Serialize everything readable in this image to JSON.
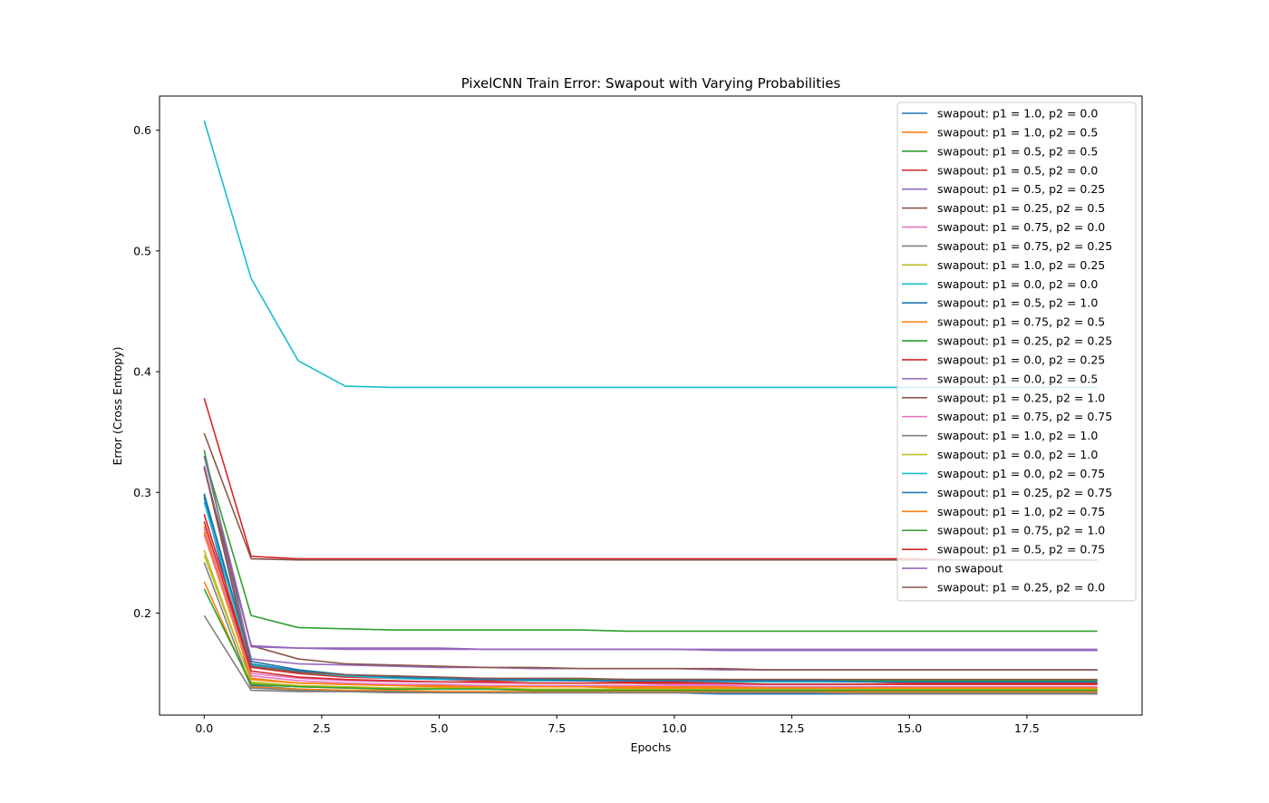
{
  "chart_data": {
    "type": "line",
    "title": "PixelCNN Train Error: Swapout with Varying Probabilities",
    "xlabel": "Epochs",
    "ylabel": "Error (Cross Entropy)",
    "xlim": [
      -0.95,
      19.95
    ],
    "ylim": [
      0.1155,
      0.6283
    ],
    "xticks": [
      0.0,
      2.5,
      5.0,
      7.5,
      10.0,
      12.5,
      15.0,
      17.5
    ],
    "xtick_labels": [
      "0.0",
      "2.5",
      "5.0",
      "7.5",
      "10.0",
      "12.5",
      "15.0",
      "17.5"
    ],
    "yticks": [
      0.2,
      0.3,
      0.4,
      0.5,
      0.6
    ],
    "ytick_labels": [
      "0.2",
      "0.3",
      "0.4",
      "0.5",
      "0.6"
    ],
    "grid": false,
    "legend": "top-right",
    "x": [
      0,
      1,
      2,
      3,
      4,
      5,
      6,
      7,
      8,
      9,
      10,
      11,
      12,
      13,
      14,
      15,
      16,
      17,
      18,
      19
    ],
    "series": [
      {
        "name": "swapout: p1 = 1.0, p2 = 0.0",
        "color": "#1f77b4",
        "values": [
          0.296,
          0.14,
          0.137,
          0.136,
          0.135,
          0.135,
          0.134,
          0.134,
          0.134,
          0.134,
          0.134,
          0.133,
          0.133,
          0.133,
          0.133,
          0.133,
          0.133,
          0.133,
          0.133,
          0.133
        ]
      },
      {
        "name": "swapout: p1 = 1.0, p2 = 0.5",
        "color": "#ff7f0e",
        "values": [
          0.272,
          0.145,
          0.142,
          0.141,
          0.14,
          0.14,
          0.139,
          0.139,
          0.139,
          0.139,
          0.139,
          0.139,
          0.138,
          0.138,
          0.138,
          0.138,
          0.138,
          0.138,
          0.138,
          0.138
        ]
      },
      {
        "name": "swapout: p1 = 0.5, p2 = 0.5",
        "color": "#2ca02c",
        "values": [
          0.33,
          0.198,
          0.188,
          0.187,
          0.186,
          0.186,
          0.186,
          0.186,
          0.186,
          0.185,
          0.185,
          0.185,
          0.185,
          0.185,
          0.185,
          0.185,
          0.185,
          0.185,
          0.185,
          0.185
        ]
      },
      {
        "name": "swapout: p1 = 0.5, p2 = 0.0",
        "color": "#d62728",
        "values": [
          0.378,
          0.247,
          0.245,
          0.245,
          0.245,
          0.245,
          0.245,
          0.245,
          0.245,
          0.245,
          0.245,
          0.245,
          0.245,
          0.245,
          0.245,
          0.245,
          0.244,
          0.244,
          0.244,
          0.244
        ]
      },
      {
        "name": "swapout: p1 = 0.5, p2 = 0.25",
        "color": "#9467bd",
        "values": [
          0.33,
          0.173,
          0.171,
          0.171,
          0.171,
          0.171,
          0.17,
          0.17,
          0.17,
          0.17,
          0.17,
          0.17,
          0.17,
          0.17,
          0.17,
          0.17,
          0.17,
          0.17,
          0.17,
          0.17
        ]
      },
      {
        "name": "swapout: p1 = 0.25, p2 = 0.5",
        "color": "#8c564b",
        "values": [
          0.349,
          0.245,
          0.244,
          0.244,
          0.244,
          0.244,
          0.244,
          0.244,
          0.244,
          0.244,
          0.244,
          0.244,
          0.244,
          0.244,
          0.244,
          0.244,
          0.244,
          0.244,
          0.244,
          0.244
        ]
      },
      {
        "name": "swapout: p1 = 0.75, p2 = 0.0",
        "color": "#e377c2",
        "values": [
          0.27,
          0.15,
          0.146,
          0.144,
          0.143,
          0.143,
          0.142,
          0.142,
          0.142,
          0.142,
          0.141,
          0.141,
          0.141,
          0.141,
          0.141,
          0.141,
          0.141,
          0.141,
          0.141,
          0.141
        ]
      },
      {
        "name": "swapout: p1 = 0.75, p2 = 0.25",
        "color": "#7f7f7f",
        "values": [
          0.198,
          0.136,
          0.135,
          0.135,
          0.134,
          0.134,
          0.134,
          0.134,
          0.134,
          0.134,
          0.134,
          0.134,
          0.134,
          0.134,
          0.134,
          0.134,
          0.134,
          0.134,
          0.134,
          0.134
        ]
      },
      {
        "name": "swapout: p1 = 1.0, p2 = 0.25",
        "color": "#bcbd22",
        "values": [
          0.252,
          0.142,
          0.139,
          0.138,
          0.137,
          0.137,
          0.137,
          0.136,
          0.136,
          0.136,
          0.136,
          0.136,
          0.136,
          0.136,
          0.136,
          0.136,
          0.136,
          0.136,
          0.136,
          0.136
        ]
      },
      {
        "name": "swapout: p1 = 0.0, p2 = 0.0",
        "color": "#17becf",
        "values": [
          0.608,
          0.477,
          0.409,
          0.388,
          0.387,
          0.387,
          0.387,
          0.387,
          0.387,
          0.387,
          0.387,
          0.387,
          0.387,
          0.387,
          0.387,
          0.387,
          0.387,
          0.387,
          0.387,
          0.387
        ]
      },
      {
        "name": "swapout: p1 = 0.5, p2 = 1.0",
        "color": "#1f77b4",
        "values": [
          0.298,
          0.158,
          0.152,
          0.148,
          0.147,
          0.146,
          0.146,
          0.145,
          0.145,
          0.145,
          0.145,
          0.145,
          0.144,
          0.144,
          0.144,
          0.144,
          0.144,
          0.144,
          0.144,
          0.144
        ]
      },
      {
        "name": "swapout: p1 = 0.75, p2 = 0.5",
        "color": "#ff7f0e",
        "values": [
          0.226,
          0.139,
          0.137,
          0.136,
          0.136,
          0.135,
          0.135,
          0.135,
          0.135,
          0.135,
          0.135,
          0.135,
          0.135,
          0.135,
          0.135,
          0.135,
          0.135,
          0.135,
          0.135,
          0.135
        ]
      },
      {
        "name": "swapout: p1 = 0.25, p2 = 0.25",
        "color": "#2ca02c",
        "values": [
          0.335,
          0.16,
          0.153,
          0.149,
          0.147,
          0.146,
          0.146,
          0.145,
          0.145,
          0.145,
          0.144,
          0.144,
          0.144,
          0.144,
          0.144,
          0.144,
          0.144,
          0.144,
          0.144,
          0.144
        ]
      },
      {
        "name": "swapout: p1 = 0.0, p2 = 0.25",
        "color": "#d62728",
        "values": [
          0.282,
          0.155,
          0.15,
          0.147,
          0.146,
          0.145,
          0.144,
          0.144,
          0.144,
          0.143,
          0.143,
          0.143,
          0.143,
          0.143,
          0.143,
          0.142,
          0.142,
          0.142,
          0.142,
          0.142
        ]
      },
      {
        "name": "swapout: p1 = 0.0, p2 = 0.5",
        "color": "#9467bd",
        "values": [
          0.322,
          0.162,
          0.158,
          0.157,
          0.156,
          0.155,
          0.155,
          0.154,
          0.154,
          0.154,
          0.154,
          0.153,
          0.153,
          0.153,
          0.153,
          0.153,
          0.153,
          0.153,
          0.153,
          0.153
        ]
      },
      {
        "name": "swapout: p1 = 0.25, p2 = 1.0",
        "color": "#8c564b",
        "values": [
          0.32,
          0.173,
          0.162,
          0.158,
          0.157,
          0.156,
          0.155,
          0.155,
          0.154,
          0.154,
          0.154,
          0.154,
          0.153,
          0.153,
          0.153,
          0.153,
          0.153,
          0.153,
          0.153,
          0.153
        ]
      },
      {
        "name": "swapout: p1 = 0.75, p2 = 0.75",
        "color": "#e377c2",
        "values": [
          0.265,
          0.148,
          0.144,
          0.142,
          0.141,
          0.141,
          0.14,
          0.14,
          0.14,
          0.14,
          0.14,
          0.14,
          0.139,
          0.139,
          0.139,
          0.139,
          0.139,
          0.139,
          0.139,
          0.139
        ]
      },
      {
        "name": "swapout: p1 = 1.0, p2 = 1.0",
        "color": "#7f7f7f",
        "values": [
          0.242,
          0.138,
          0.136,
          0.135,
          0.135,
          0.134,
          0.134,
          0.134,
          0.134,
          0.134,
          0.134,
          0.134,
          0.134,
          0.134,
          0.133,
          0.133,
          0.133,
          0.133,
          0.133,
          0.133
        ]
      },
      {
        "name": "swapout: p1 = 0.0, p2 = 1.0",
        "color": "#bcbd22",
        "values": [
          0.248,
          0.143,
          0.14,
          0.139,
          0.138,
          0.138,
          0.138,
          0.137,
          0.137,
          0.137,
          0.137,
          0.137,
          0.137,
          0.137,
          0.137,
          0.137,
          0.137,
          0.137,
          0.137,
          0.137
        ]
      },
      {
        "name": "swapout: p1 = 0.0, p2 = 0.75",
        "color": "#17becf",
        "values": [
          0.292,
          0.157,
          0.151,
          0.148,
          0.146,
          0.145,
          0.145,
          0.144,
          0.144,
          0.144,
          0.144,
          0.143,
          0.143,
          0.143,
          0.143,
          0.143,
          0.143,
          0.143,
          0.143,
          0.143
        ]
      },
      {
        "name": "swapout: p1 = 0.25, p2 = 0.75",
        "color": "#1f77b4",
        "values": [
          0.299,
          0.16,
          0.153,
          0.149,
          0.147,
          0.146,
          0.145,
          0.145,
          0.144,
          0.144,
          0.144,
          0.144,
          0.144,
          0.144,
          0.143,
          0.143,
          0.143,
          0.143,
          0.143,
          0.143
        ]
      },
      {
        "name": "swapout: p1 = 1.0, p2 = 0.75",
        "color": "#ff7f0e",
        "values": [
          0.267,
          0.146,
          0.142,
          0.141,
          0.14,
          0.139,
          0.139,
          0.139,
          0.139,
          0.138,
          0.138,
          0.138,
          0.138,
          0.138,
          0.138,
          0.138,
          0.138,
          0.138,
          0.138,
          0.138
        ]
      },
      {
        "name": "swapout: p1 = 0.75, p2 = 1.0",
        "color": "#2ca02c",
        "values": [
          0.22,
          0.141,
          0.139,
          0.138,
          0.137,
          0.137,
          0.137,
          0.136,
          0.136,
          0.136,
          0.136,
          0.136,
          0.136,
          0.136,
          0.136,
          0.136,
          0.136,
          0.136,
          0.136,
          0.136
        ]
      },
      {
        "name": "swapout: p1 = 0.5, p2 = 0.75",
        "color": "#d62728",
        "values": [
          0.276,
          0.152,
          0.147,
          0.145,
          0.144,
          0.143,
          0.143,
          0.142,
          0.142,
          0.142,
          0.142,
          0.142,
          0.141,
          0.141,
          0.141,
          0.141,
          0.141,
          0.141,
          0.141,
          0.141
        ]
      },
      {
        "name": "no swapout",
        "color": "#9467bd",
        "values": [
          0.33,
          0.172,
          0.171,
          0.17,
          0.17,
          0.17,
          0.17,
          0.17,
          0.17,
          0.17,
          0.17,
          0.169,
          0.169,
          0.169,
          0.169,
          0.169,
          0.169,
          0.169,
          0.169,
          0.169
        ]
      },
      {
        "name": "swapout: p1 = 0.25, p2 = 0.0",
        "color": "#8c564b",
        "values": [
          0.321,
          0.156,
          0.151,
          0.149,
          0.148,
          0.147,
          0.146,
          0.146,
          0.146,
          0.145,
          0.145,
          0.145,
          0.145,
          0.145,
          0.145,
          0.145,
          0.145,
          0.145,
          0.145,
          0.145
        ]
      }
    ]
  }
}
